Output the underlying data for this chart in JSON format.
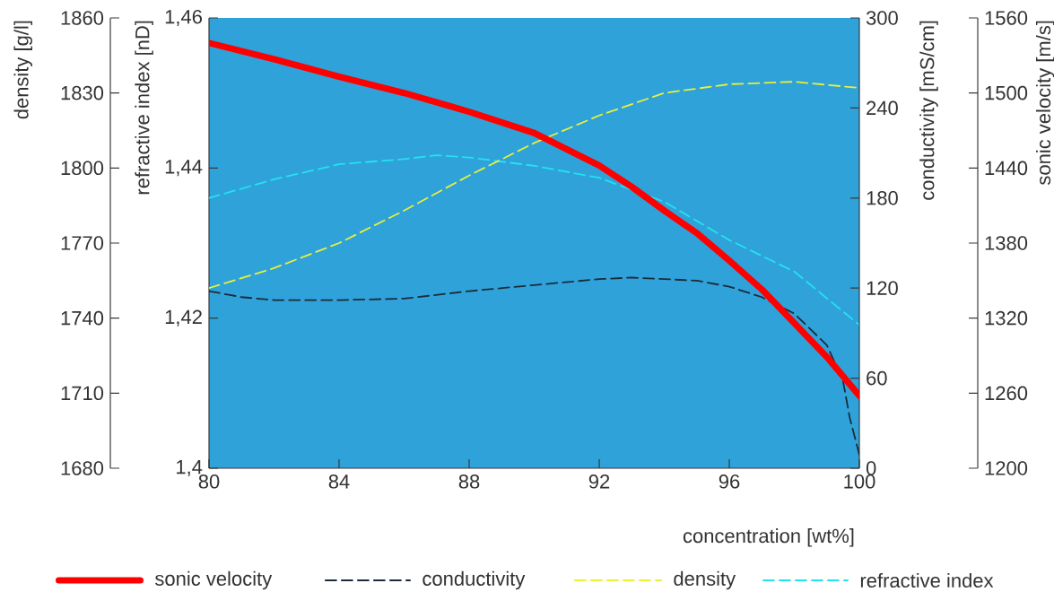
{
  "chart_data": [
    {
      "type": "line",
      "xlabel": "concentration [wt%]",
      "ylabel": "density [g/l]",
      "y2label": "sonic velocity [m/s]",
      "xlim": [
        80,
        100
      ],
      "xticks": [
        80,
        84,
        88,
        92,
        96,
        100
      ],
      "ylim": [
        1680,
        1860
      ],
      "yticks": [
        1680,
        1710,
        1740,
        1770,
        1800,
        1830,
        1860
      ],
      "y2lim": [
        1200,
        1560
      ],
      "y2ticks": [
        1200,
        1260,
        1320,
        1380,
        1440,
        1500,
        1560
      ],
      "legend": "bottom",
      "marker": "none",
      "series": [
        {
          "name": "sonic velocity",
          "color": "#ff0000",
          "axis": "y2",
          "line_style": "solid",
          "x": [
            80,
            82,
            84,
            86,
            88,
            90,
            92,
            93,
            94,
            95,
            96,
            97,
            98,
            99,
            100
          ],
          "values": [
            1540,
            1527,
            1513,
            1500,
            1485,
            1468,
            1442,
            1425,
            1406,
            1388,
            1366,
            1343,
            1316,
            1289,
            1258
          ]
        },
        {
          "name": "density",
          "color": "#e8f03a",
          "line_style": "dashed",
          "x": [
            80,
            82,
            84,
            86,
            88,
            90,
            92,
            94,
            96,
            98,
            100
          ],
          "values": [
            1752,
            1760,
            1770,
            1783,
            1797,
            1810,
            1821,
            1830,
            1833.5,
            1834.5,
            1832
          ]
        }
      ]
    },
    {
      "type": "line",
      "ylabel": "refractive index [nD]",
      "y2label": "conductivity [mS/cm]",
      "xlim": [
        80,
        100
      ],
      "tick_labels": "y",
      "ylim": [
        1.4,
        1.46
      ],
      "yticks": [
        {
          "value": 1.4,
          "label": "1,4"
        },
        {
          "value": 1.42,
          "label": "1,42"
        },
        {
          "value": 1.44,
          "label": "1,44"
        },
        {
          "value": 1.46,
          "label": "1,46"
        }
      ],
      "y2lim": [
        0,
        300
      ],
      "y2ticks": [
        0,
        60,
        120,
        180,
        240,
        300
      ],
      "legend": "bottom",
      "marker": "none",
      "series": [
        {
          "name": "conductivity",
          "color": "#1c2b3a",
          "axis": "y2",
          "line_style": "dashed",
          "x": [
            80,
            81,
            82,
            84,
            86,
            88,
            90,
            92,
            93,
            94,
            95,
            96,
            97,
            98,
            99,
            99.5,
            99.7,
            100
          ],
          "values": [
            118,
            114,
            112,
            112,
            113,
            118,
            122,
            126,
            127,
            126,
            125,
            121,
            114,
            103,
            82,
            58,
            34,
            9
          ]
        },
        {
          "name": "refractive index",
          "color": "#22e3f0",
          "line_style": "dashed",
          "x": [
            80,
            82,
            84,
            86,
            87,
            88,
            90,
            92,
            94,
            96,
            98,
            100
          ],
          "values": [
            1.436,
            1.4385,
            1.4405,
            1.4412,
            1.4417,
            1.4414,
            1.4403,
            1.4387,
            1.4355,
            1.4304,
            1.4262,
            1.4191
          ]
        }
      ]
    }
  ]
}
